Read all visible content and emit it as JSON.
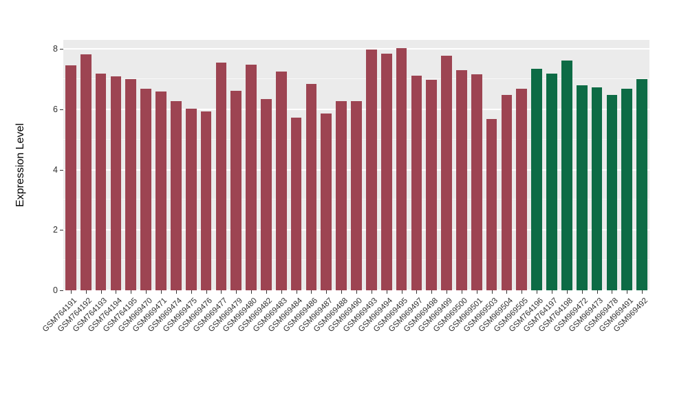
{
  "chart_data": {
    "type": "bar",
    "title": "",
    "xlabel": "",
    "ylabel": "Expression Level",
    "ylim": [
      0,
      8.3
    ],
    "yticks": [
      0,
      2,
      4,
      6,
      8
    ],
    "grid": "on",
    "legend_position": "none",
    "panel_background": "#EBEBEB",
    "categories": [
      "GSM764191",
      "GSM764192",
      "GSM764193",
      "GSM764194",
      "GSM764195",
      "GSM969470",
      "GSM969471",
      "GSM969474",
      "GSM969475",
      "GSM969476",
      "GSM969477",
      "GSM969479",
      "GSM969480",
      "GSM969482",
      "GSM969483",
      "GSM969484",
      "GSM969486",
      "GSM969487",
      "GSM969488",
      "GSM969490",
      "GSM969493",
      "GSM969494",
      "GSM969495",
      "GSM969497",
      "GSM969498",
      "GSM969499",
      "GSM969500",
      "GSM969501",
      "GSM969503",
      "GSM969504",
      "GSM969505",
      "GSM764196",
      "GSM764197",
      "GSM764198",
      "GSM969472",
      "GSM969473",
      "GSM969478",
      "GSM969491",
      "GSM969492"
    ],
    "values": [
      7.45,
      7.82,
      7.18,
      7.09,
      7.0,
      6.67,
      6.58,
      6.26,
      6.01,
      5.94,
      7.55,
      6.61,
      7.48,
      6.35,
      7.25,
      5.73,
      6.83,
      5.85,
      6.28,
      6.26,
      7.98,
      7.84,
      8.03,
      7.11,
      6.97,
      7.78,
      7.29,
      7.16,
      5.67,
      6.47,
      6.67,
      7.34,
      7.18,
      7.61,
      6.79,
      6.72,
      6.47,
      6.67,
      7.0
    ],
    "color_groups": [
      {
        "color": "#9d4452",
        "from": 0,
        "to": 30
      },
      {
        "color": "#0d6b45",
        "from": 31,
        "to": 38
      }
    ]
  }
}
